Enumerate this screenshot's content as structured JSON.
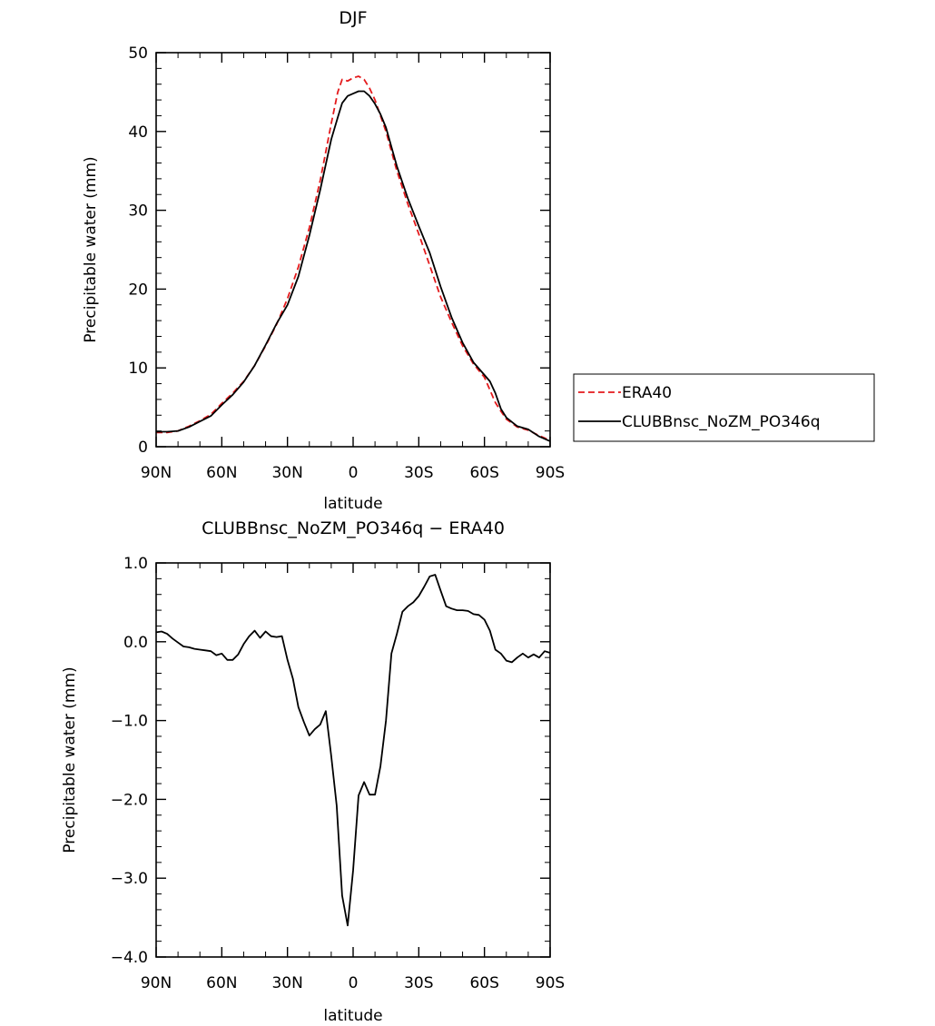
{
  "colors": {
    "model": "#000000",
    "era40": "#e41a1c",
    "frame": "#000000",
    "background": "#ffffff"
  },
  "legend": {
    "entries": [
      {
        "label": "ERA40",
        "color": "#e41a1c",
        "style": "dashed"
      },
      {
        "label": "CLUBBnsc_NoZM_PO346q",
        "color": "#000000",
        "style": "solid"
      }
    ]
  },
  "chart_data": [
    {
      "type": "line",
      "title": "DJF",
      "xlabel": "latitude",
      "ylabel": "Precipitable water (mm)",
      "xlim": [
        -90,
        90
      ],
      "ylim": [
        0,
        50
      ],
      "xticks": [
        -90,
        -60,
        -30,
        0,
        30,
        60,
        90
      ],
      "xticklabels": [
        "90N",
        "60N",
        "30N",
        "0",
        "30S",
        "60S",
        "90S"
      ],
      "yticks": [
        0,
        10,
        20,
        30,
        40,
        50
      ],
      "yticklabels": [
        "0",
        "10",
        "20",
        "30",
        "40",
        "50"
      ],
      "x": [
        -90,
        -85,
        -80,
        -75,
        -70,
        -65,
        -60,
        -55,
        -50,
        -45,
        -40,
        -35,
        -30,
        -25,
        -20,
        -15,
        -10,
        -7,
        -5,
        -2.5,
        0,
        2.5,
        5,
        7.5,
        10,
        12.5,
        15,
        20,
        25,
        30,
        35,
        40,
        45,
        50,
        55,
        60,
        62.5,
        65,
        67.5,
        70,
        75,
        80,
        85,
        90
      ],
      "series": [
        {
          "name": "ERA40",
          "color": "#e41a1c",
          "dash": true,
          "values": [
            1.8,
            1.8,
            2.0,
            2.6,
            3.3,
            4.1,
            5.5,
            6.8,
            8.3,
            10.3,
            12.8,
            15.5,
            18.8,
            22.8,
            27.8,
            33.8,
            41.0,
            45.0,
            46.6,
            46.4,
            46.8,
            47.0,
            46.6,
            45.5,
            44.0,
            42.0,
            40.0,
            35.0,
            30.8,
            27.0,
            23.0,
            19.0,
            15.8,
            12.8,
            10.5,
            8.8,
            7.2,
            5.6,
            4.5,
            3.5,
            2.5,
            2.1,
            1.4,
            0.8
          ]
        },
        {
          "name": "CLUBBnsc_NoZM_PO346q",
          "color": "#000000",
          "dash": false,
          "values": [
            1.9,
            1.9,
            2.0,
            2.5,
            3.2,
            3.9,
            5.3,
            6.6,
            8.2,
            10.3,
            12.9,
            15.6,
            18.0,
            21.6,
            26.8,
            32.6,
            39.0,
            41.8,
            43.6,
            44.5,
            44.8,
            45.1,
            45.1,
            44.5,
            43.5,
            42.2,
            40.5,
            35.6,
            31.5,
            28.0,
            24.6,
            20.3,
            16.4,
            13.2,
            10.7,
            9.1,
            8.3,
            6.8,
            4.8,
            3.7,
            2.6,
            2.2,
            1.3,
            0.7
          ]
        }
      ]
    },
    {
      "type": "line",
      "title": "CLUBBnsc_NoZM_PO346q − ERA40",
      "xlabel": "latitude",
      "ylabel": "Precipitable water (mm)",
      "xlim": [
        -90,
        90
      ],
      "ylim": [
        -4.0,
        1.0
      ],
      "xticks": [
        -90,
        -60,
        -30,
        0,
        30,
        60,
        90
      ],
      "xticklabels": [
        "90N",
        "60N",
        "30N",
        "0",
        "30S",
        "60S",
        "90S"
      ],
      "yticks": [
        -4.0,
        -3.0,
        -2.0,
        -1.0,
        0.0,
        1.0
      ],
      "yticklabels": [
        "−4.0",
        "−3.0",
        "−2.0",
        "−1.0",
        "0.0",
        "1.0"
      ],
      "x": [
        -90,
        -87.5,
        -85,
        -82.5,
        -80,
        -77.5,
        -75,
        -72.5,
        -70,
        -67.5,
        -65,
        -62.5,
        -60,
        -57.5,
        -55,
        -52.5,
        -50,
        -47.5,
        -45,
        -42.5,
        -40,
        -37.5,
        -35,
        -32.5,
        -30,
        -27.5,
        -25,
        -22.5,
        -20,
        -17.5,
        -15,
        -12.5,
        -10,
        -7.5,
        -5,
        -2.5,
        0,
        2.5,
        5,
        7.5,
        10,
        12.5,
        15,
        17.5,
        20,
        22.5,
        25,
        27.5,
        30,
        32.5,
        35,
        37.5,
        40,
        42.5,
        45,
        47.5,
        50,
        52.5,
        55,
        57.5,
        60,
        62.5,
        65,
        67.5,
        70,
        72.5,
        75,
        77.5,
        80,
        82.5,
        85,
        87.5,
        90
      ],
      "series": [
        {
          "name": "CLUBBnsc_NoZM_PO346q − ERA40",
          "color": "#000000",
          "dash": false,
          "values": [
            0.12,
            0.13,
            0.1,
            0.04,
            -0.01,
            -0.06,
            -0.07,
            -0.09,
            -0.1,
            -0.11,
            -0.12,
            -0.17,
            -0.15,
            -0.23,
            -0.23,
            -0.16,
            -0.03,
            0.07,
            0.14,
            0.05,
            0.13,
            0.07,
            0.06,
            0.07,
            -0.23,
            -0.47,
            -0.83,
            -1.02,
            -1.19,
            -1.11,
            -1.05,
            -0.88,
            -1.45,
            -2.08,
            -3.22,
            -3.6,
            -2.9,
            -1.95,
            -1.78,
            -1.94,
            -1.94,
            -1.58,
            -1.0,
            -0.15,
            0.1,
            0.38,
            0.45,
            0.5,
            0.58,
            0.7,
            0.83,
            0.85,
            0.65,
            0.45,
            0.42,
            0.4,
            0.4,
            0.39,
            0.35,
            0.34,
            0.28,
            0.14,
            -0.1,
            -0.15,
            -0.24,
            -0.26,
            -0.2,
            -0.15,
            -0.2,
            -0.16,
            -0.2,
            -0.12,
            -0.14
          ]
        }
      ]
    }
  ]
}
